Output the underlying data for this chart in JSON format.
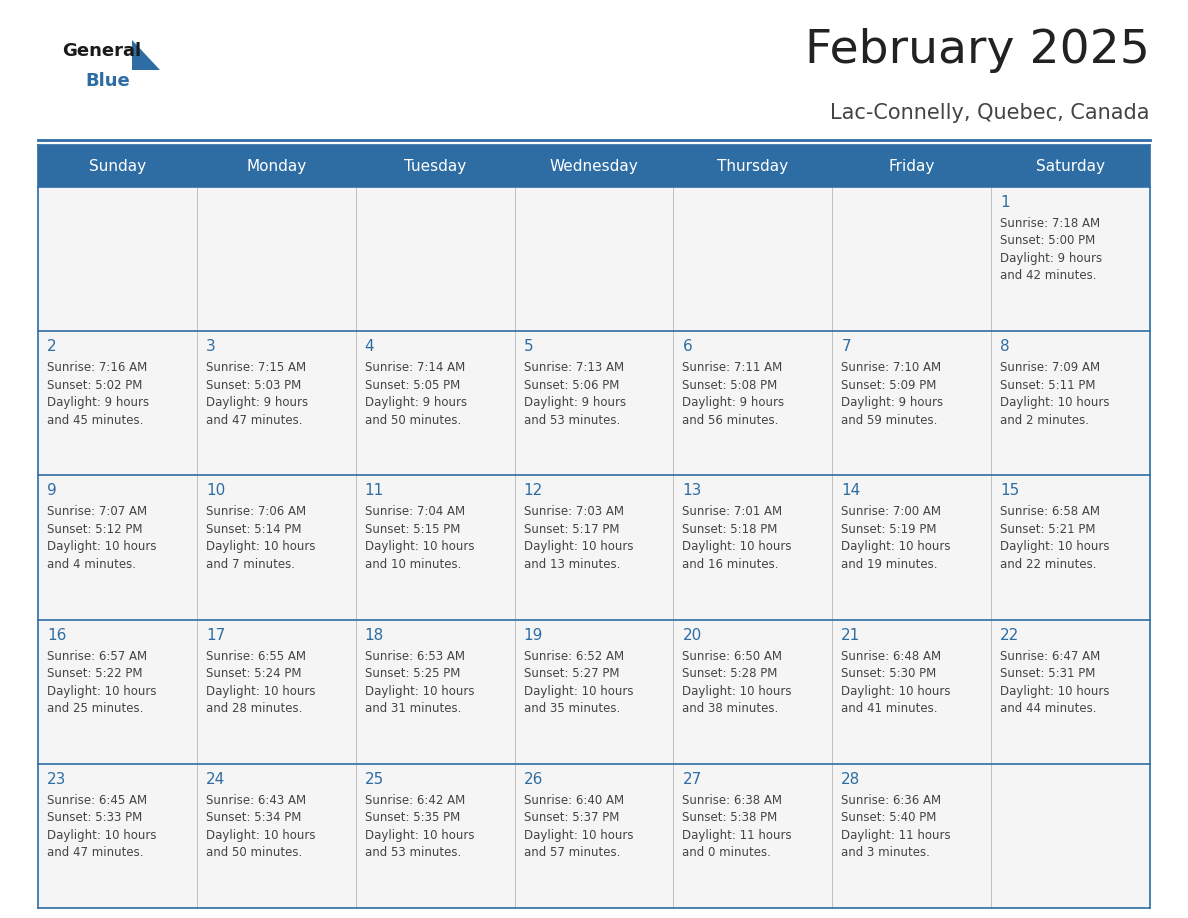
{
  "title": "February 2025",
  "subtitle": "Lac-Connelly, Quebec, Canada",
  "days_of_week": [
    "Sunday",
    "Monday",
    "Tuesday",
    "Wednesday",
    "Thursday",
    "Friday",
    "Saturday"
  ],
  "header_bg": "#2E6DA4",
  "header_text": "#FFFFFF",
  "cell_bg": "#F5F5F5",
  "border_color": "#2E6DA4",
  "row_border_color": "#5A8FC0",
  "text_color": "#444444",
  "title_color": "#222222",
  "subtitle_color": "#444444",
  "day_number_color": "#2E6DA4",
  "calendar": [
    [
      null,
      null,
      null,
      null,
      null,
      null,
      {
        "day": "1",
        "sunrise": "7:18 AM",
        "sunset": "5:00 PM",
        "daylight1": "9 hours",
        "daylight2": "and 42 minutes."
      }
    ],
    [
      {
        "day": "2",
        "sunrise": "7:16 AM",
        "sunset": "5:02 PM",
        "daylight1": "9 hours",
        "daylight2": "and 45 minutes."
      },
      {
        "day": "3",
        "sunrise": "7:15 AM",
        "sunset": "5:03 PM",
        "daylight1": "9 hours",
        "daylight2": "and 47 minutes."
      },
      {
        "day": "4",
        "sunrise": "7:14 AM",
        "sunset": "5:05 PM",
        "daylight1": "9 hours",
        "daylight2": "and 50 minutes."
      },
      {
        "day": "5",
        "sunrise": "7:13 AM",
        "sunset": "5:06 PM",
        "daylight1": "9 hours",
        "daylight2": "and 53 minutes."
      },
      {
        "day": "6",
        "sunrise": "7:11 AM",
        "sunset": "5:08 PM",
        "daylight1": "9 hours",
        "daylight2": "and 56 minutes."
      },
      {
        "day": "7",
        "sunrise": "7:10 AM",
        "sunset": "5:09 PM",
        "daylight1": "9 hours",
        "daylight2": "and 59 minutes."
      },
      {
        "day": "8",
        "sunrise": "7:09 AM",
        "sunset": "5:11 PM",
        "daylight1": "10 hours",
        "daylight2": "and 2 minutes."
      }
    ],
    [
      {
        "day": "9",
        "sunrise": "7:07 AM",
        "sunset": "5:12 PM",
        "daylight1": "10 hours",
        "daylight2": "and 4 minutes."
      },
      {
        "day": "10",
        "sunrise": "7:06 AM",
        "sunset": "5:14 PM",
        "daylight1": "10 hours",
        "daylight2": "and 7 minutes."
      },
      {
        "day": "11",
        "sunrise": "7:04 AM",
        "sunset": "5:15 PM",
        "daylight1": "10 hours",
        "daylight2": "and 10 minutes."
      },
      {
        "day": "12",
        "sunrise": "7:03 AM",
        "sunset": "5:17 PM",
        "daylight1": "10 hours",
        "daylight2": "and 13 minutes."
      },
      {
        "day": "13",
        "sunrise": "7:01 AM",
        "sunset": "5:18 PM",
        "daylight1": "10 hours",
        "daylight2": "and 16 minutes."
      },
      {
        "day": "14",
        "sunrise": "7:00 AM",
        "sunset": "5:19 PM",
        "daylight1": "10 hours",
        "daylight2": "and 19 minutes."
      },
      {
        "day": "15",
        "sunrise": "6:58 AM",
        "sunset": "5:21 PM",
        "daylight1": "10 hours",
        "daylight2": "and 22 minutes."
      }
    ],
    [
      {
        "day": "16",
        "sunrise": "6:57 AM",
        "sunset": "5:22 PM",
        "daylight1": "10 hours",
        "daylight2": "and 25 minutes."
      },
      {
        "day": "17",
        "sunrise": "6:55 AM",
        "sunset": "5:24 PM",
        "daylight1": "10 hours",
        "daylight2": "and 28 minutes."
      },
      {
        "day": "18",
        "sunrise": "6:53 AM",
        "sunset": "5:25 PM",
        "daylight1": "10 hours",
        "daylight2": "and 31 minutes."
      },
      {
        "day": "19",
        "sunrise": "6:52 AM",
        "sunset": "5:27 PM",
        "daylight1": "10 hours",
        "daylight2": "and 35 minutes."
      },
      {
        "day": "20",
        "sunrise": "6:50 AM",
        "sunset": "5:28 PM",
        "daylight1": "10 hours",
        "daylight2": "and 38 minutes."
      },
      {
        "day": "21",
        "sunrise": "6:48 AM",
        "sunset": "5:30 PM",
        "daylight1": "10 hours",
        "daylight2": "and 41 minutes."
      },
      {
        "day": "22",
        "sunrise": "6:47 AM",
        "sunset": "5:31 PM",
        "daylight1": "10 hours",
        "daylight2": "and 44 minutes."
      }
    ],
    [
      {
        "day": "23",
        "sunrise": "6:45 AM",
        "sunset": "5:33 PM",
        "daylight1": "10 hours",
        "daylight2": "and 47 minutes."
      },
      {
        "day": "24",
        "sunrise": "6:43 AM",
        "sunset": "5:34 PM",
        "daylight1": "10 hours",
        "daylight2": "and 50 minutes."
      },
      {
        "day": "25",
        "sunrise": "6:42 AM",
        "sunset": "5:35 PM",
        "daylight1": "10 hours",
        "daylight2": "and 53 minutes."
      },
      {
        "day": "26",
        "sunrise": "6:40 AM",
        "sunset": "5:37 PM",
        "daylight1": "10 hours",
        "daylight2": "and 57 minutes."
      },
      {
        "day": "27",
        "sunrise": "6:38 AM",
        "sunset": "5:38 PM",
        "daylight1": "11 hours",
        "daylight2": "and 0 minutes."
      },
      {
        "day": "28",
        "sunrise": "6:36 AM",
        "sunset": "5:40 PM",
        "daylight1": "11 hours",
        "daylight2": "and 3 minutes."
      },
      null
    ]
  ]
}
